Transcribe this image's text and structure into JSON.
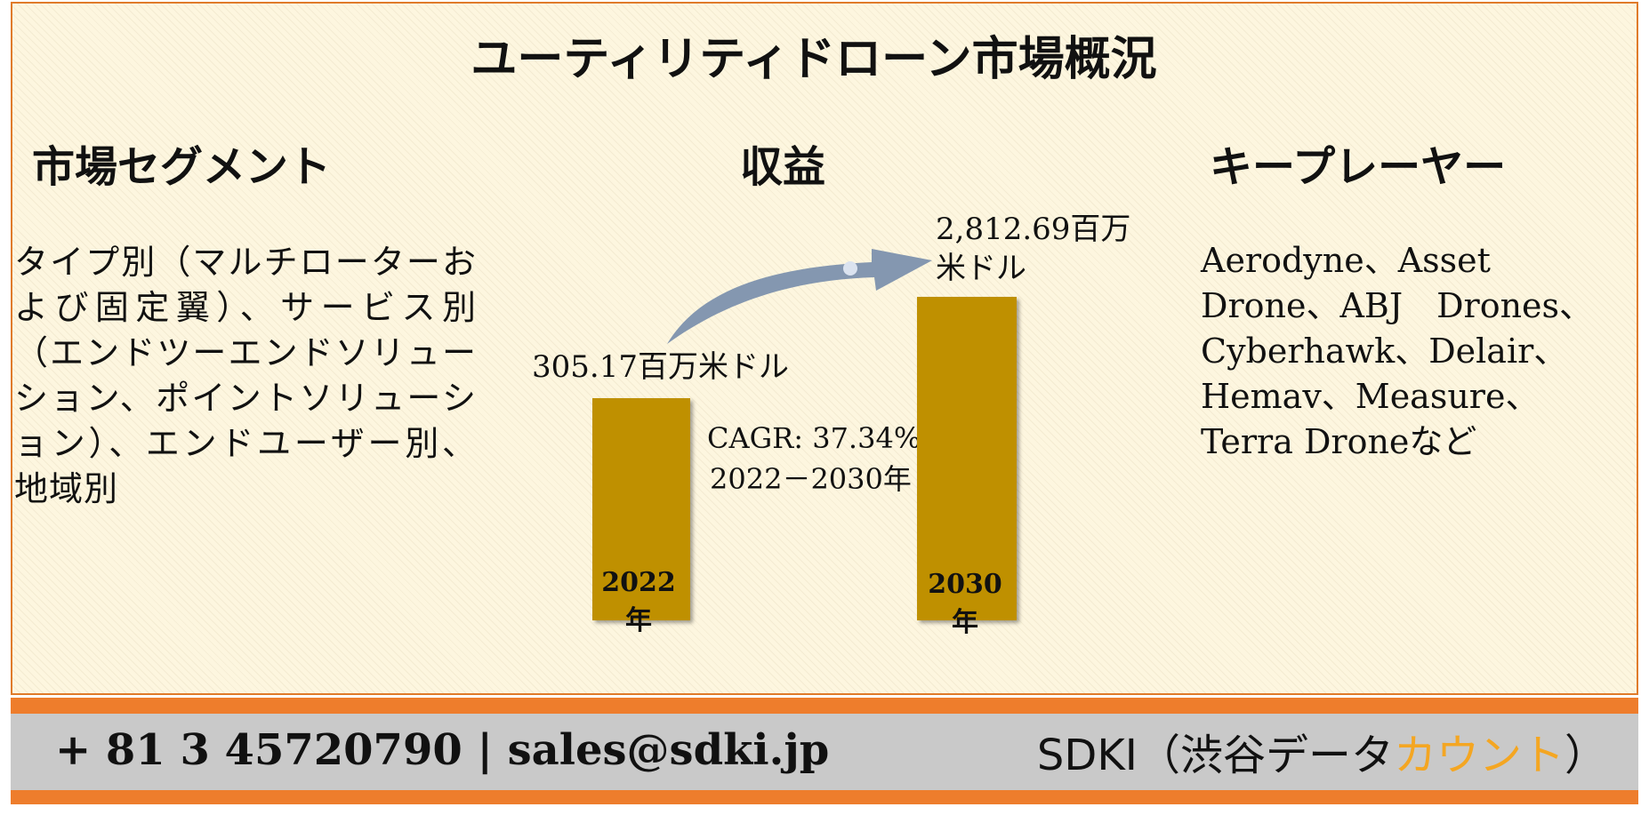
{
  "title": "ユーティリティドローン市場概況",
  "sections": {
    "segments_heading": "市場セグメント",
    "revenue_heading": "収益",
    "players_heading": "キープレーヤー"
  },
  "segments_text": "タイプ別（マルチローターおよび固定翼）、サービス別（エンドツーエンドソリューション、ポイントソリューション）、エンドユーザー別、地域別",
  "revenue": {
    "start_value_label": "305.17百万米ドル",
    "end_value_label_line1": "2,812.69百万",
    "end_value_label_line2": "米ドル",
    "cagr_label": "CAGR: 37.34%",
    "period_label": "2022－2030年",
    "bars": [
      {
        "year_label": "2022年",
        "value": 305.17
      },
      {
        "year_label": "2030年",
        "value": 2812.69
      }
    ]
  },
  "players_text": "Aerodyne、Asset Drone、ABJ　Drones、Cyberhawk、Delair、Hemav、Measure、Terra Droneなど",
  "footer": {
    "contact": "+ 81 3 45720790 | sales@sdki.jp",
    "company_prefix": "SDKI（渋谷データ",
    "company_accent": "カウント",
    "company_suffix": "）"
  },
  "colors": {
    "bar": "#bf9000",
    "arrow": "#8497b0",
    "footer_band": "#ee7d2c",
    "footer_fill": "#c9c9c9",
    "accent_text": "#f4a622"
  }
}
